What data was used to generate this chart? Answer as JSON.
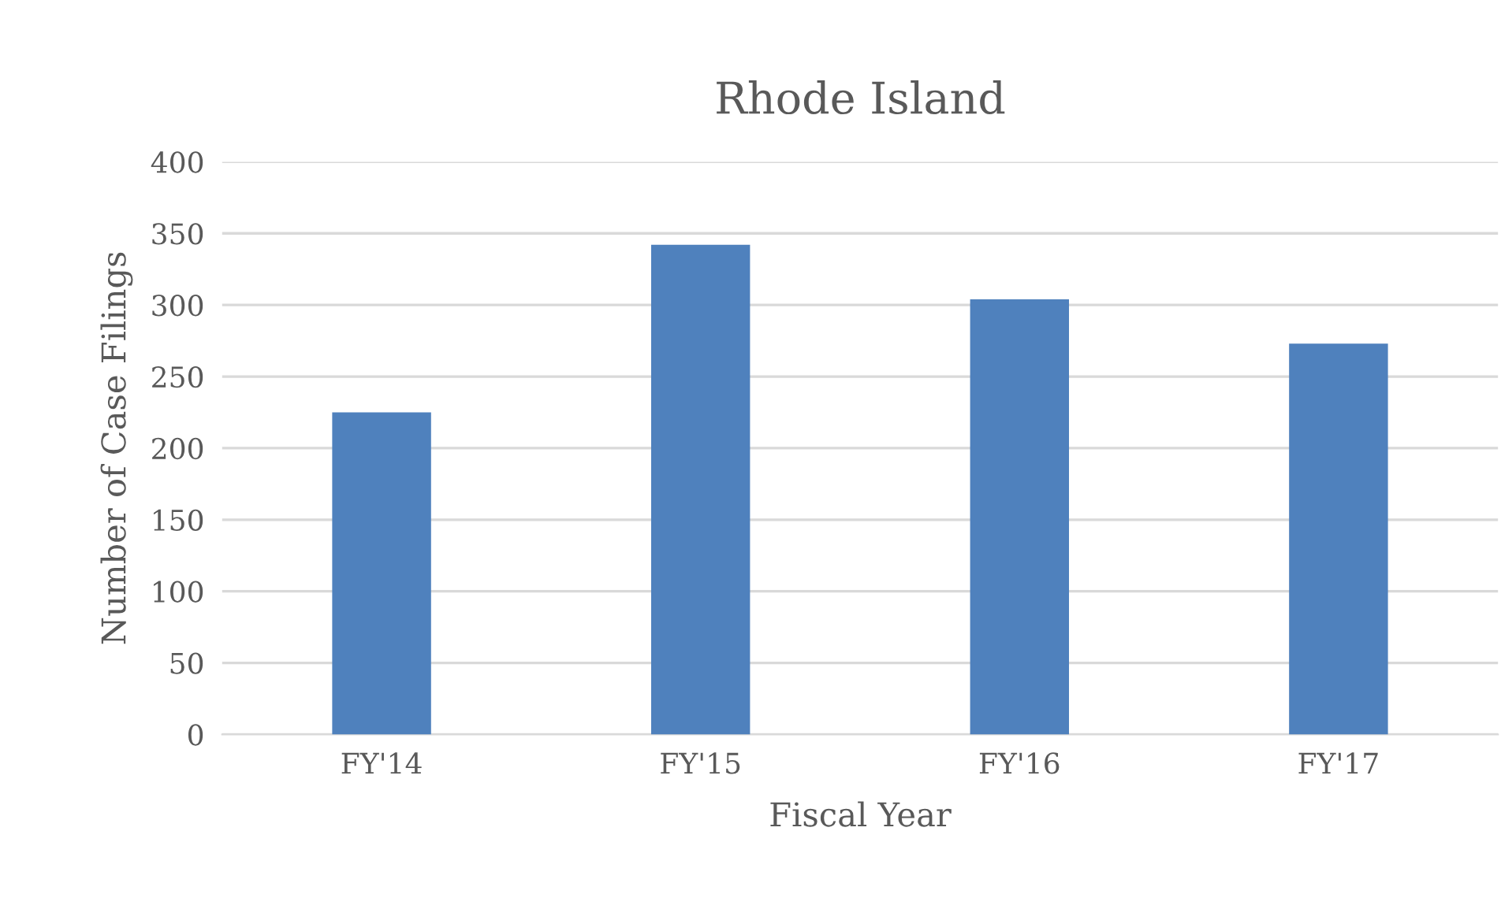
{
  "chart_data": {
    "type": "bar",
    "title": "Rhode Island",
    "xlabel": "Fiscal Year",
    "ylabel": "Number of Case Filings",
    "categories": [
      "FY'14",
      "FY'15",
      "FY'16",
      "FY'17"
    ],
    "values": [
      225,
      342,
      304,
      273
    ],
    "color": "#4f81bd",
    "ylim": [
      0,
      400
    ],
    "yticks": [
      0,
      50,
      100,
      150,
      200,
      250,
      300,
      350,
      400
    ],
    "grid": "y"
  }
}
